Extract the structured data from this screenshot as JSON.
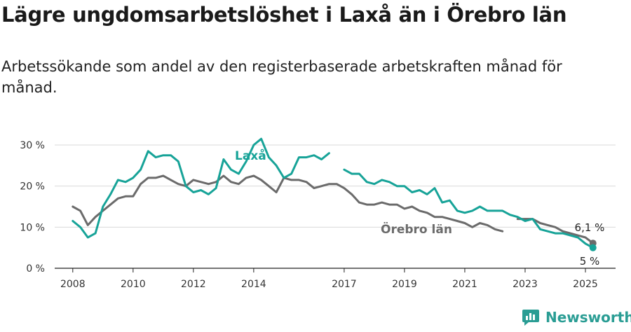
{
  "title": "Lägre ungdomsarbetslöshet i Laxå än i Örebro län",
  "subtitle": "Arbetssökande som andel av den registerbaserade arbetskraften månad för månad.",
  "brand": {
    "name": "Newsworthy",
    "color": "#2a9d94"
  },
  "chart_data": {
    "type": "line",
    "title": "Lägre ungdomsarbetslöshet i Laxå än i Örebro län",
    "ylabel": "",
    "xlabel": "",
    "ylim": [
      0,
      30
    ],
    "yticks": [
      0,
      10,
      20,
      30
    ],
    "ytick_labels": [
      "0 %",
      "10 %",
      "20 %",
      "30 %"
    ],
    "xticks": [
      2008,
      2010,
      2012,
      2014,
      2017,
      2019,
      2021,
      2023,
      2025
    ],
    "grid": true,
    "series": [
      {
        "name": "Laxå",
        "color": "#17a398",
        "end_label": "5 %",
        "points": [
          [
            2008.0,
            11.5
          ],
          [
            2008.25,
            10
          ],
          [
            2008.5,
            7.5
          ],
          [
            2008.75,
            8.5
          ],
          [
            2009.0,
            15
          ],
          [
            2009.25,
            18
          ],
          [
            2009.5,
            21.5
          ],
          [
            2009.75,
            21
          ],
          [
            2010.0,
            22
          ],
          [
            2010.25,
            24
          ],
          [
            2010.5,
            28.5
          ],
          [
            2010.75,
            27
          ],
          [
            2011.0,
            27.5
          ],
          [
            2011.25,
            27.5
          ],
          [
            2011.5,
            26
          ],
          [
            2011.75,
            20
          ],
          [
            2012.0,
            18.5
          ],
          [
            2012.25,
            19
          ],
          [
            2012.5,
            18
          ],
          [
            2012.75,
            19.5
          ],
          [
            2013.0,
            26.5
          ],
          [
            2013.25,
            24
          ],
          [
            2013.5,
            23
          ],
          [
            2013.75,
            26
          ],
          [
            2014.0,
            30
          ],
          [
            2014.25,
            31.5
          ],
          [
            2014.5,
            27
          ],
          [
            2014.75,
            25
          ],
          [
            2015.0,
            22
          ],
          [
            2015.25,
            23
          ],
          [
            2015.5,
            27
          ],
          [
            2015.75,
            27
          ],
          [
            2016.0,
            27.5
          ],
          [
            2016.25,
            26.5
          ],
          [
            2016.5,
            28
          ],
          [
            2016.75,
            null
          ],
          [
            2017.0,
            24
          ],
          [
            2017.25,
            23
          ],
          [
            2017.5,
            23
          ],
          [
            2017.75,
            21
          ],
          [
            2018.0,
            20.5
          ],
          [
            2018.25,
            21.5
          ],
          [
            2018.5,
            21
          ],
          [
            2018.75,
            20
          ],
          [
            2019.0,
            20
          ],
          [
            2019.25,
            18.5
          ],
          [
            2019.5,
            19
          ],
          [
            2019.75,
            18
          ],
          [
            2020.0,
            19.5
          ],
          [
            2020.25,
            16
          ],
          [
            2020.5,
            16.5
          ],
          [
            2020.75,
            14
          ],
          [
            2021.0,
            13.5
          ],
          [
            2021.25,
            14
          ],
          [
            2021.5,
            15
          ],
          [
            2021.75,
            14
          ],
          [
            2022.0,
            14
          ],
          [
            2022.25,
            14
          ],
          [
            2022.5,
            13
          ],
          [
            2022.75,
            12.5
          ],
          [
            2023.0,
            11.5
          ],
          [
            2023.25,
            12
          ],
          [
            2023.5,
            9.5
          ],
          [
            2023.75,
            9
          ],
          [
            2024.0,
            8.5
          ],
          [
            2024.25,
            8.5
          ],
          [
            2024.5,
            8
          ],
          [
            2024.75,
            7.5
          ],
          [
            2025.0,
            6
          ],
          [
            2025.25,
            5
          ]
        ]
      },
      {
        "name": "Örebro län",
        "color": "#6b6b6b",
        "end_label": "6,1 %",
        "points": [
          [
            2008.0,
            15
          ],
          [
            2008.25,
            14
          ],
          [
            2008.5,
            10.5
          ],
          [
            2008.75,
            12.5
          ],
          [
            2009.0,
            14
          ],
          [
            2009.25,
            15.5
          ],
          [
            2009.5,
            17
          ],
          [
            2009.75,
            17.5
          ],
          [
            2010.0,
            17.5
          ],
          [
            2010.25,
            20.5
          ],
          [
            2010.5,
            22
          ],
          [
            2010.75,
            22
          ],
          [
            2011.0,
            22.5
          ],
          [
            2011.25,
            21.5
          ],
          [
            2011.5,
            20.5
          ],
          [
            2011.75,
            20
          ],
          [
            2012.0,
            21.5
          ],
          [
            2012.25,
            21
          ],
          [
            2012.5,
            20.5
          ],
          [
            2012.75,
            21
          ],
          [
            2013.0,
            22.5
          ],
          [
            2013.25,
            21
          ],
          [
            2013.5,
            20.5
          ],
          [
            2013.75,
            22
          ],
          [
            2014.0,
            22.5
          ],
          [
            2014.25,
            21.5
          ],
          [
            2014.5,
            20
          ],
          [
            2014.75,
            18.5
          ],
          [
            2015.0,
            22
          ],
          [
            2015.25,
            21.5
          ],
          [
            2015.5,
            21.5
          ],
          [
            2015.75,
            21
          ],
          [
            2016.0,
            19.5
          ],
          [
            2016.25,
            20
          ],
          [
            2016.5,
            20.5
          ],
          [
            2016.75,
            20.5
          ],
          [
            2017.0,
            19.5
          ],
          [
            2017.25,
            18
          ],
          [
            2017.5,
            16
          ],
          [
            2017.75,
            15.5
          ],
          [
            2018.0,
            15.5
          ],
          [
            2018.25,
            16
          ],
          [
            2018.5,
            15.5
          ],
          [
            2018.75,
            15.5
          ],
          [
            2019.0,
            14.5
          ],
          [
            2019.25,
            15
          ],
          [
            2019.5,
            14
          ],
          [
            2019.75,
            13.5
          ],
          [
            2020.0,
            12.5
          ],
          [
            2020.25,
            12.5
          ],
          [
            2020.5,
            12
          ],
          [
            2020.75,
            11.5
          ],
          [
            2021.0,
            11
          ],
          [
            2021.25,
            10
          ],
          [
            2021.5,
            11
          ],
          [
            2021.75,
            10.5
          ],
          [
            2022.0,
            9.5
          ],
          [
            2022.25,
            9
          ],
          [
            2022.5,
            null
          ],
          [
            2022.75,
            12
          ],
          [
            2023.0,
            12
          ],
          [
            2023.25,
            12
          ],
          [
            2023.5,
            11
          ],
          [
            2023.75,
            10.5
          ],
          [
            2024.0,
            10
          ],
          [
            2024.25,
            9
          ],
          [
            2024.5,
            8.5
          ],
          [
            2024.75,
            8
          ],
          [
            2025.0,
            7.5
          ],
          [
            2025.25,
            6.1
          ]
        ]
      }
    ],
    "series_labels": [
      "Laxå",
      "Örebro län"
    ]
  }
}
